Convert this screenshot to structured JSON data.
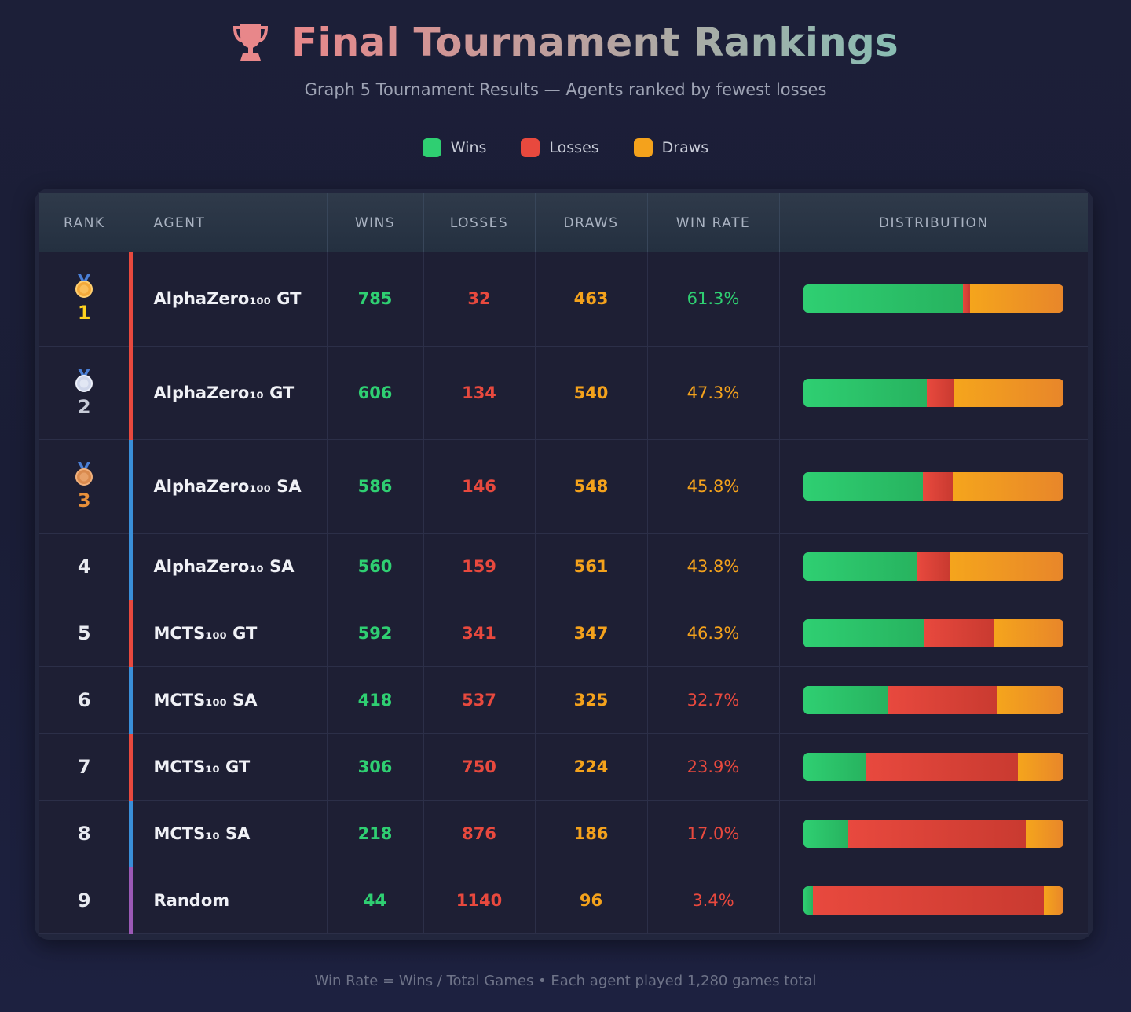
{
  "header": {
    "title": "Final Tournament Rankings",
    "subtitle": "Graph 5 Tournament Results — Agents ranked by fewest losses",
    "icon": "trophy-icon"
  },
  "legend": [
    {
      "label": "Wins",
      "color": "#2fcf72"
    },
    {
      "label": "Losses",
      "color": "#e8493e"
    },
    {
      "label": "Draws",
      "color": "#f4a21c"
    }
  ],
  "columns": [
    "RANK",
    "AGENT",
    "WINS",
    "LOSSES",
    "DRAWS",
    "WIN RATE",
    "DISTRIBUTION"
  ],
  "chart_data": {
    "type": "table",
    "rows": [
      {
        "rank": "1",
        "agent": "AlphaZero₁₀₀ GT",
        "wins": 785,
        "losses": 32,
        "draws": 463,
        "win_rate": "61.3%",
        "medal": "gold",
        "group_color": "#e8493e",
        "rate_color": "#2fcf72"
      },
      {
        "rank": "2",
        "agent": "AlphaZero₁₀ GT",
        "wins": 606,
        "losses": 134,
        "draws": 540,
        "win_rate": "47.3%",
        "medal": "silver",
        "group_color": "#e8493e",
        "rate_color": "#f4a21c"
      },
      {
        "rank": "3",
        "agent": "AlphaZero₁₀₀ SA",
        "wins": 586,
        "losses": 146,
        "draws": 548,
        "win_rate": "45.8%",
        "medal": "bronze",
        "group_color": "#3a8fd8",
        "rate_color": "#f4a21c"
      },
      {
        "rank": "4",
        "agent": "AlphaZero₁₀ SA",
        "wins": 560,
        "losses": 159,
        "draws": 561,
        "win_rate": "43.8%",
        "medal": "",
        "group_color": "#3a8fd8",
        "rate_color": "#f4a21c"
      },
      {
        "rank": "5",
        "agent": "MCTS₁₀₀ GT",
        "wins": 592,
        "losses": 341,
        "draws": 347,
        "win_rate": "46.3%",
        "medal": "",
        "group_color": "#e8493e",
        "rate_color": "#f4a21c"
      },
      {
        "rank": "6",
        "agent": "MCTS₁₀₀ SA",
        "wins": 418,
        "losses": 537,
        "draws": 325,
        "win_rate": "32.7%",
        "medal": "",
        "group_color": "#3a8fd8",
        "rate_color": "#e8493e"
      },
      {
        "rank": "7",
        "agent": "MCTS₁₀ GT",
        "wins": 306,
        "losses": 750,
        "draws": 224,
        "win_rate": "23.9%",
        "medal": "",
        "group_color": "#e8493e",
        "rate_color": "#e8493e"
      },
      {
        "rank": "8",
        "agent": "MCTS₁₀ SA",
        "wins": 218,
        "losses": 876,
        "draws": 186,
        "win_rate": "17.0%",
        "medal": "",
        "group_color": "#3a8fd8",
        "rate_color": "#e8493e"
      },
      {
        "rank": "9",
        "agent": "Random",
        "wins": 44,
        "losses": 1140,
        "draws": 96,
        "win_rate": "3.4%",
        "medal": "",
        "group_color": "#9b59b6",
        "rate_color": "#e8493e"
      }
    ]
  },
  "footer": "Win Rate = Wins / Total Games • Each agent played 1,280 games total"
}
